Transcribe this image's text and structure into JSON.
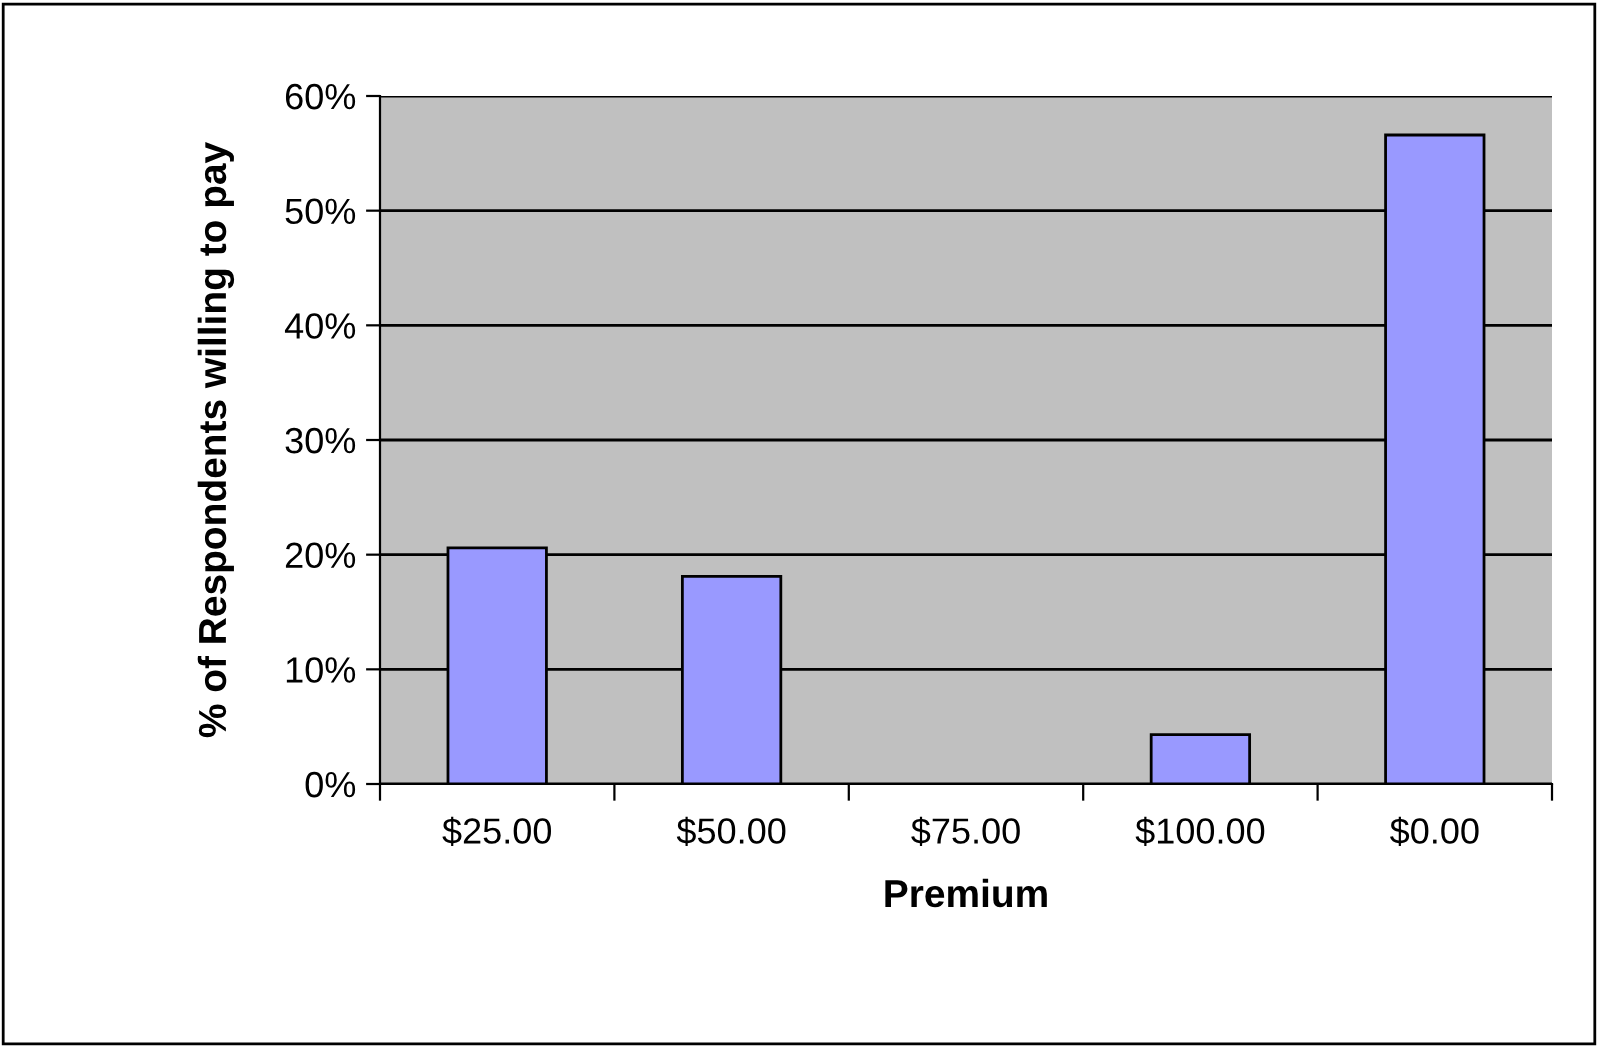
{
  "chart_data": {
    "type": "bar",
    "xlabel": "Premium",
    "ylabel": "% of Respondents willing to pay",
    "categories": [
      "$25.00",
      "$50.00",
      "$75.00",
      "$100.00",
      "$0.00"
    ],
    "values": [
      20.6,
      18.1,
      null,
      4.3,
      56.6
    ],
    "color": "#9999ff",
    "ylim": [
      0,
      60
    ],
    "yticks": [
      {
        "value": 0,
        "label": "0%"
      },
      {
        "value": 10,
        "label": "10%"
      },
      {
        "value": 20,
        "label": "20%"
      },
      {
        "value": 30,
        "label": "30%"
      },
      {
        "value": 40,
        "label": "40%"
      },
      {
        "value": 50,
        "label": "50%"
      },
      {
        "value": 60,
        "label": "60%"
      }
    ],
    "grid": "y"
  }
}
